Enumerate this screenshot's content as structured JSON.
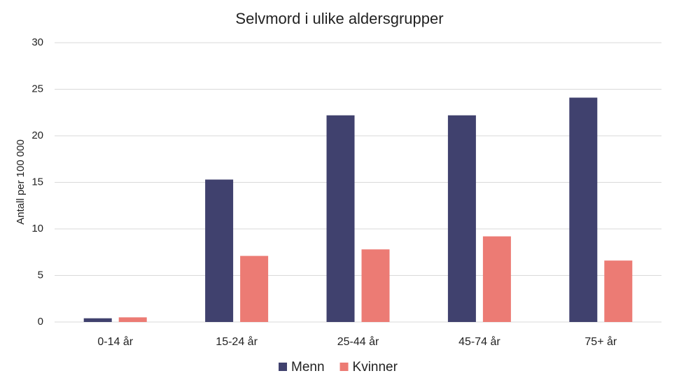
{
  "chart_data": {
    "type": "bar",
    "title": "Selvmord i ulike aldersgrupper",
    "y_label": "Antall  per 100 000",
    "categories": [
      "0-14 år",
      "15-24 år",
      "25-44 år",
      "45-74 år",
      "75+ år"
    ],
    "series": [
      {
        "name": "Menn",
        "color": "#40416e",
        "values": [
          0.4,
          15.3,
          22.2,
          22.2,
          24.1
        ]
      },
      {
        "name": "Kvinner",
        "color": "#ec7b74",
        "values": [
          0.5,
          7.1,
          7.8,
          9.2,
          6.6
        ]
      }
    ],
    "ylim": [
      0,
      30
    ],
    "yticks": [
      0,
      5,
      10,
      15,
      20,
      25,
      30
    ],
    "grid": true,
    "legend": "bottom"
  }
}
